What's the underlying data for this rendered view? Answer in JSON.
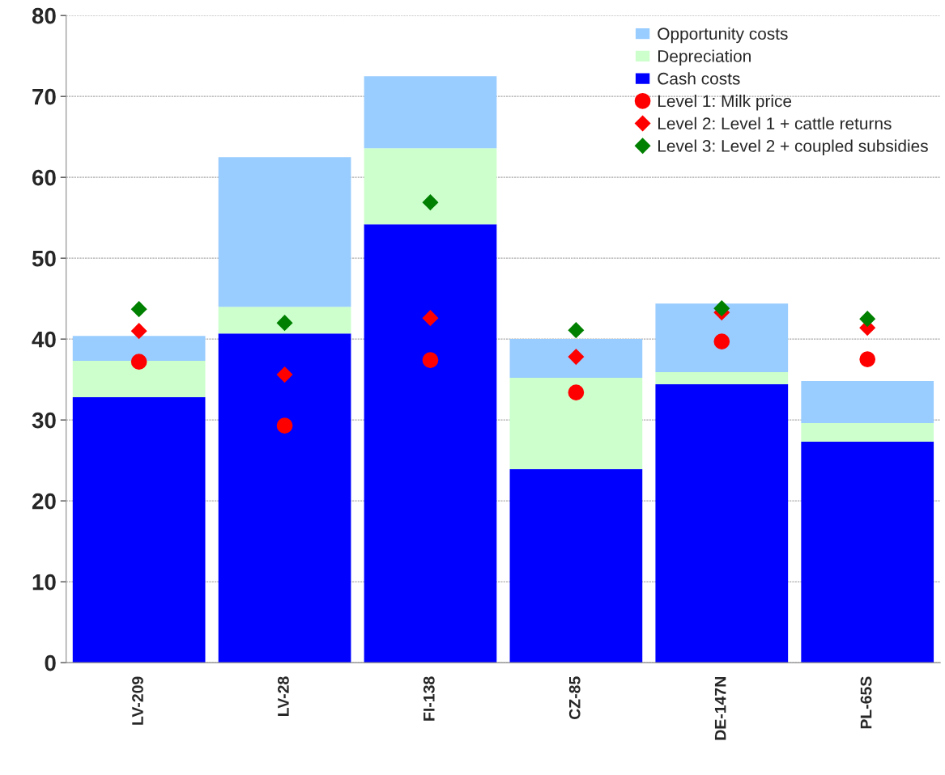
{
  "chart_data": {
    "type": "bar",
    "stacked": true,
    "categories": [
      "LV-209",
      "LV-28",
      "FI-138",
      "CZ-85",
      "DE-147N",
      "PL-65S"
    ],
    "series": [
      {
        "name": "Cash costs",
        "color": "#0000ff",
        "values": [
          32.8,
          40.7,
          54.2,
          23.9,
          34.4,
          27.3
        ]
      },
      {
        "name": "Depreciation",
        "color": "#ccffcc",
        "values": [
          4.5,
          3.3,
          9.4,
          11.3,
          1.5,
          2.3
        ]
      },
      {
        "name": "Opportunity costs",
        "color": "#99ccff",
        "values": [
          3.1,
          18.5,
          8.9,
          4.8,
          8.5,
          5.2
        ]
      },
      {
        "name": "Level 1: Milk price",
        "type": "scatter",
        "marker": "circle",
        "color": "#ff0000",
        "values": [
          37.2,
          29.3,
          37.4,
          33.4,
          39.7,
          37.5
        ]
      },
      {
        "name": "Level 2: Level 1 + cattle returns",
        "type": "scatter",
        "marker": "diamond",
        "color": "#ff0000",
        "values": [
          41.0,
          35.6,
          42.6,
          37.8,
          43.3,
          41.4
        ]
      },
      {
        "name": "Level 3: Level 2 + coupled subsidies",
        "type": "scatter",
        "marker": "diamond",
        "color": "#008000",
        "values": [
          43.7,
          42.0,
          56.9,
          41.1,
          43.8,
          42.5
        ]
      }
    ],
    "ylim": [
      0,
      80
    ],
    "yticks": [
      0,
      10,
      20,
      30,
      40,
      50,
      60,
      70,
      80
    ],
    "grid": "y",
    "legend": "top right"
  }
}
